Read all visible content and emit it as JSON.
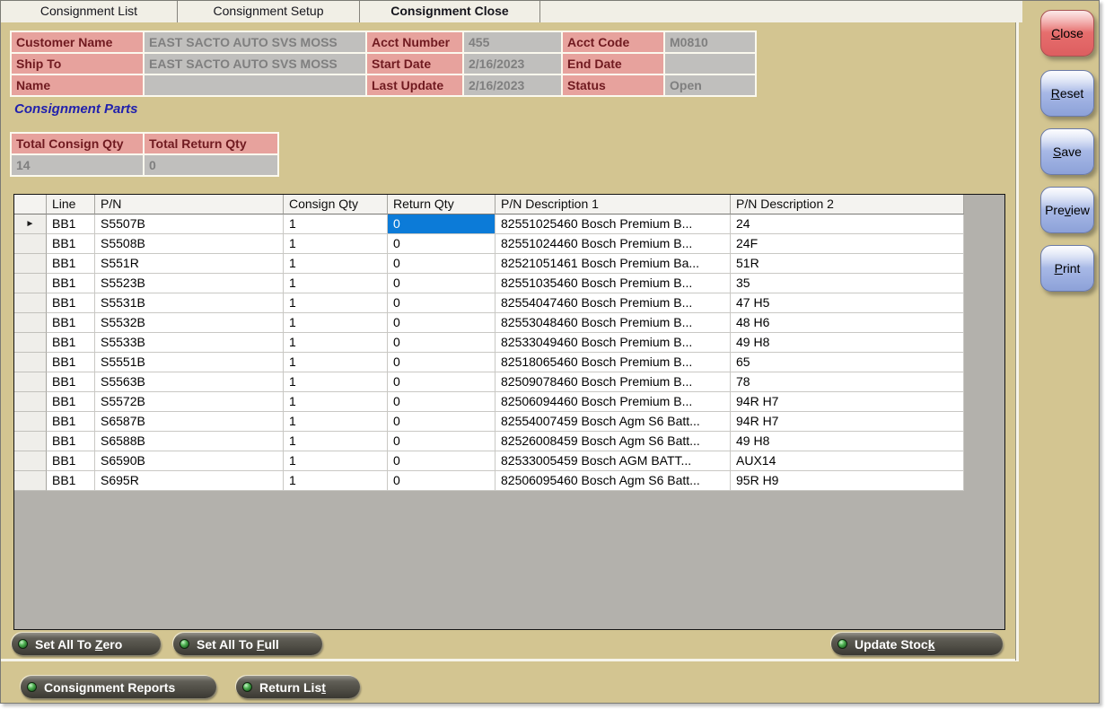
{
  "colors": {
    "window_bg": "#d3c591",
    "strip_bg": "#f1efe6",
    "label_bg": "#e7a29d",
    "label_text": "#701a20",
    "value_bg": "#c0bfbd",
    "value_text": "#7f7f7f",
    "section_title": "#2121ad",
    "grid_filler": "#b3b1ac",
    "selection_bg": "#0c7bd8",
    "close_red": "#e76f6e",
    "button_blue": "#aebde6",
    "pill_bg": "#54524a"
  },
  "tabs": [
    {
      "label": "Consignment List",
      "active": false
    },
    {
      "label": "Consignment Setup",
      "active": false
    },
    {
      "label": "Consignment Close",
      "active": true
    }
  ],
  "form": {
    "customer_name": {
      "label": "Customer Name",
      "value": "EAST SACTO AUTO SVS MOSS"
    },
    "ship_to": {
      "label": "Ship To",
      "value": "EAST SACTO AUTO SVS MOSS"
    },
    "name": {
      "label": "Name",
      "value": ""
    },
    "acct_number": {
      "label": "Acct Number",
      "value": "455"
    },
    "start_date": {
      "label": "Start Date",
      "value": "2/16/2023"
    },
    "last_update": {
      "label": "Last Update",
      "value": "2/16/2023"
    },
    "acct_code": {
      "label": "Acct Code",
      "value": "M0810"
    },
    "end_date": {
      "label": "End Date",
      "value": ""
    },
    "status": {
      "label": "Status",
      "value": "Open"
    }
  },
  "section": {
    "title": "Consignment Parts"
  },
  "totals": {
    "consign": {
      "label": "Total Consign Qty",
      "value": "14"
    },
    "return": {
      "label": "Total Return Qty",
      "value": "0"
    }
  },
  "grid": {
    "columns": [
      "Line",
      "P/N",
      "Consign Qty",
      "Return Qty",
      "P/N Description 1",
      "P/N Description 2"
    ],
    "row_selector_glyph": "►",
    "selection": {
      "row": 0,
      "field": "return_qty"
    },
    "rows": [
      {
        "line": "BB1",
        "pn": "S5507B",
        "consign_qty": "1",
        "return_qty": "0",
        "desc1": "82551025460 Bosch Premium B...",
        "desc2": "24"
      },
      {
        "line": "BB1",
        "pn": "S5508B",
        "consign_qty": "1",
        "return_qty": "0",
        "desc1": "82551024460 Bosch Premium B...",
        "desc2": "24F"
      },
      {
        "line": "BB1",
        "pn": "S551R",
        "consign_qty": "1",
        "return_qty": "0",
        "desc1": "82521051461 Bosch Premium Ba...",
        "desc2": "51R"
      },
      {
        "line": "BB1",
        "pn": "S5523B",
        "consign_qty": "1",
        "return_qty": "0",
        "desc1": "82551035460 Bosch Premium B...",
        "desc2": "35"
      },
      {
        "line": "BB1",
        "pn": "S5531B",
        "consign_qty": "1",
        "return_qty": "0",
        "desc1": "82554047460 Bosch Premium B...",
        "desc2": "47 H5"
      },
      {
        "line": "BB1",
        "pn": "S5532B",
        "consign_qty": "1",
        "return_qty": "0",
        "desc1": "82553048460 Bosch Premium B...",
        "desc2": "48 H6"
      },
      {
        "line": "BB1",
        "pn": "S5533B",
        "consign_qty": "1",
        "return_qty": "0",
        "desc1": "82533049460 Bosch Premium B...",
        "desc2": "49 H8"
      },
      {
        "line": "BB1",
        "pn": "S5551B",
        "consign_qty": "1",
        "return_qty": "0",
        "desc1": "82518065460 Bosch Premium B...",
        "desc2": "65"
      },
      {
        "line": "BB1",
        "pn": "S5563B",
        "consign_qty": "1",
        "return_qty": "0",
        "desc1": "82509078460 Bosch Premium B...",
        "desc2": "78"
      },
      {
        "line": "BB1",
        "pn": "S5572B",
        "consign_qty": "1",
        "return_qty": "0",
        "desc1": "82506094460 Bosch Premium B...",
        "desc2": "94R H7"
      },
      {
        "line": "BB1",
        "pn": "S6587B",
        "consign_qty": "1",
        "return_qty": "0",
        "desc1": "82554007459 Bosch Agm S6 Batt...",
        "desc2": "94R H7"
      },
      {
        "line": "BB1",
        "pn": "S6588B",
        "consign_qty": "1",
        "return_qty": "0",
        "desc1": "82526008459 Bosch Agm S6 Batt...",
        "desc2": "49 H8"
      },
      {
        "line": "BB1",
        "pn": "S6590B",
        "consign_qty": "1",
        "return_qty": "0",
        "desc1": "82533005459 Bosch AGM BATT...",
        "desc2": "AUX14"
      },
      {
        "line": "BB1",
        "pn": "S695R",
        "consign_qty": "1",
        "return_qty": "0",
        "desc1": "82506095460 Bosch Agm S6 Batt...",
        "desc2": "95R H9"
      }
    ]
  },
  "panel_buttons": {
    "set_all_zero": {
      "pre": "Set All To ",
      "u": "Z",
      "post": "ero"
    },
    "set_all_full": {
      "pre": "Set All To ",
      "u": "F",
      "post": "ull"
    },
    "update_stock": {
      "pre": "Update Stoc",
      "u": "k",
      "post": ""
    }
  },
  "footer_buttons": {
    "consignment_reports": {
      "pre": "Consignment Reports",
      "u": "",
      "post": ""
    },
    "return_list": {
      "pre": "Return Lis",
      "u": "t",
      "post": ""
    }
  },
  "side_buttons": {
    "close": {
      "pre": "",
      "u": "C",
      "post": "lose"
    },
    "reset": {
      "pre": "",
      "u": "R",
      "post": "eset"
    },
    "save": {
      "pre": "",
      "u": "S",
      "post": "ave"
    },
    "preview": {
      "pre": "Pre",
      "u": "v",
      "post": "iew"
    },
    "print": {
      "pre": "",
      "u": "P",
      "post": "rint"
    }
  }
}
